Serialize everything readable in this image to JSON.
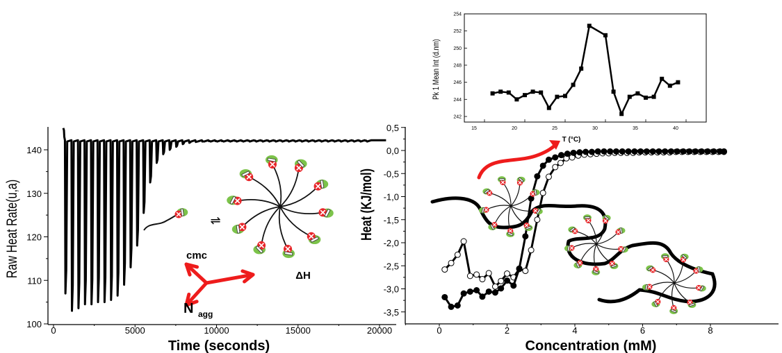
{
  "colors": {
    "ink": "#000000",
    "accent_red": "#ee1c1c",
    "headgroup_green": "#7cc34a"
  },
  "annotations": {
    "cmc": "cmc",
    "delta_h": "ΔH",
    "n_agg_main": "N",
    "n_agg_sub": "agg",
    "equilibrium_symbol": "⇌"
  },
  "chart_data": [
    {
      "type": "line",
      "id": "itc-raw",
      "xlabel": "Time (seconds)",
      "ylabel": "Raw Heat Rate(u,a)",
      "xlim": [
        -500,
        21000
      ],
      "ylim": [
        100,
        145
      ],
      "xticks": [
        0,
        5000,
        10000,
        15000,
        20000
      ],
      "yticks": [
        100,
        110,
        120,
        130,
        140
      ],
      "baseline": 142.2,
      "first_injection_s": 700,
      "injection_interval_s": 400,
      "injection_minima": [
        107,
        103,
        103.6,
        104.5,
        104.5,
        105,
        105,
        105.5,
        106.5,
        109,
        113,
        118,
        125.5,
        132.5,
        137,
        139,
        140,
        140.7,
        141.3,
        141.6,
        141.8,
        141.9,
        142.0,
        142.0,
        142.0,
        142.05,
        142.05,
        142.05,
        142.1,
        142.1,
        142.1,
        142.1,
        142.1,
        142.1,
        142.1,
        142.1,
        142.1,
        142.1,
        142.1,
        142.1,
        142.1,
        142.1,
        142.1,
        142.1,
        142.1,
        142.1,
        142.1
      ]
    },
    {
      "type": "scatter-line",
      "id": "itc-integrated",
      "xlabel": "Concentration (mM)",
      "ylabel": "Heat (KJ/mol)",
      "xlim": [
        -1,
        8.7
      ],
      "ylim": [
        -3.75,
        0.5
      ],
      "xticks": [
        0,
        2,
        4,
        6,
        8
      ],
      "yticks": [
        0.5,
        0,
        -0.5,
        -1,
        -1.5,
        -2,
        -2.5,
        -3,
        -3.5
      ],
      "ytick_labels": [
        "0,5",
        "0,0",
        "-0,5",
        "-1,0",
        "-1,5",
        "-2,0",
        "-2,5",
        "-3,0",
        "-3,5"
      ],
      "xtick_labels": [
        "0",
        "2",
        "4",
        "6",
        "8"
      ],
      "series": [
        {
          "marker": "filled-circle",
          "x": [
            0.16,
            0.35,
            0.54,
            0.72,
            0.91,
            1.1,
            1.27,
            1.46,
            1.65,
            1.82,
            2.0,
            2.19,
            2.36,
            2.54,
            2.71,
            2.89,
            3.06,
            3.23,
            3.42,
            3.6,
            3.78,
            3.96,
            4.14,
            4.32,
            4.5,
            4.68,
            4.86,
            5.04,
            5.22,
            5.4,
            5.58,
            5.76,
            5.94,
            6.12,
            6.3,
            6.48,
            6.66,
            6.84,
            7.02,
            7.2,
            7.38,
            7.56,
            7.74,
            7.92,
            8.1,
            8.28,
            8.4
          ],
          "y": [
            -3.18,
            -3.39,
            -3.36,
            -3.1,
            -3.06,
            -3.03,
            -3.17,
            -3.06,
            -3.08,
            -2.99,
            -2.82,
            -2.93,
            -2.56,
            -1.86,
            -1.04,
            -0.56,
            -0.33,
            -0.2,
            -0.15,
            -0.1,
            -0.07,
            -0.05,
            -0.04,
            -0.03,
            -0.03,
            -0.02,
            -0.02,
            -0.02,
            -0.02,
            -0.02,
            -0.02,
            -0.02,
            -0.02,
            -0.02,
            -0.02,
            -0.02,
            -0.02,
            -0.02,
            -0.02,
            -0.02,
            -0.02,
            -0.02,
            -0.02,
            -0.02,
            -0.02,
            -0.02,
            -0.02
          ]
        },
        {
          "marker": "open-circle",
          "x": [
            0.16,
            0.35,
            0.54,
            0.72,
            0.91,
            1.1,
            1.27,
            1.46,
            1.65,
            1.82,
            2.0,
            2.19,
            2.36,
            2.54,
            2.71,
            2.89,
            3.06,
            3.23,
            3.42,
            3.58,
            3.75,
            3.92,
            4.1,
            4.28,
            4.46,
            4.64,
            4.82,
            5.0,
            5.18,
            5.36,
            5.54,
            5.72,
            5.9,
            6.08,
            6.26,
            6.44,
            6.62,
            6.8,
            6.98,
            7.16,
            7.34,
            7.52,
            7.7,
            7.88,
            8.06,
            8.24,
            8.4
          ],
          "y": [
            -2.58,
            -2.44,
            -2.26,
            -1.97,
            -2.72,
            -2.69,
            -2.79,
            -2.66,
            -2.95,
            -2.83,
            -2.67,
            -2.75,
            -2.57,
            -2.61,
            -2.16,
            -1.5,
            -0.92,
            -0.57,
            -0.36,
            -0.27,
            -0.17,
            -0.15,
            -0.11,
            -0.09,
            -0.08,
            -0.07,
            -0.06,
            -0.06,
            -0.05,
            -0.05,
            -0.05,
            -0.05,
            -0.04,
            -0.04,
            -0.04,
            -0.04,
            -0.04,
            -0.04,
            -0.03,
            -0.03,
            -0.03,
            -0.03,
            -0.03,
            -0.03,
            -0.03,
            -0.03,
            -0.03
          ]
        }
      ]
    },
    {
      "type": "line",
      "id": "dls-inset",
      "xlabel": "T (°C)",
      "ylabel": "Pk 1 Mean Int (d.nm)",
      "xlim": [
        13.8,
        43.5
      ],
      "ylim": [
        241.3,
        254
      ],
      "xticks": [
        15,
        20,
        25,
        30,
        35,
        40
      ],
      "yticks": [
        242,
        244,
        246,
        248,
        250,
        252,
        254
      ],
      "marker": "filled-square",
      "x": [
        16,
        17,
        18,
        19,
        20,
        21,
        22,
        23,
        24,
        25,
        26,
        27,
        28,
        30,
        31,
        32,
        33,
        34,
        35,
        36,
        37,
        38,
        39
      ],
      "y": [
        244.7,
        244.9,
        244.8,
        244.0,
        244.5,
        244.9,
        244.8,
        243.0,
        244.3,
        244.4,
        245.7,
        247.6,
        252.6,
        251.5,
        244.9,
        242.3,
        244.3,
        244.7,
        244.2,
        244.3,
        246.4,
        245.6,
        246.0
      ]
    }
  ]
}
